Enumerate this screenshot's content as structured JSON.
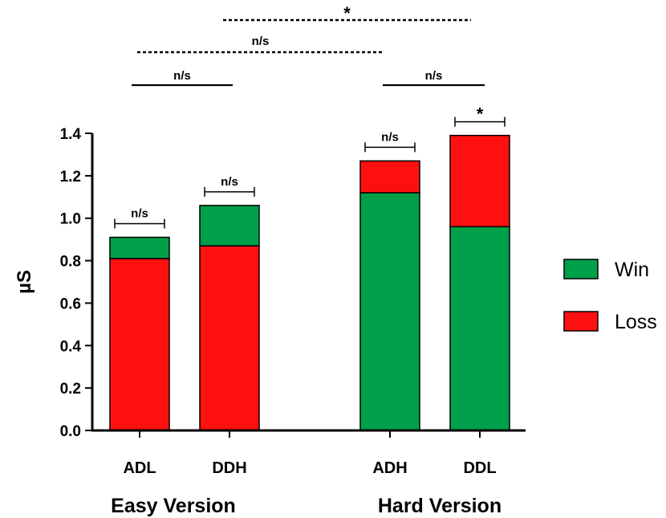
{
  "chart_data": {
    "type": "bar",
    "stacked": true,
    "ylabel": "µS",
    "ylim": [
      0,
      1.4
    ],
    "yticks": [
      "0.0",
      "0.2",
      "0.4",
      "0.6",
      "0.8",
      "1.0",
      "1.2",
      "1.4"
    ],
    "categories": [
      "ADL",
      "DDH",
      "ADH",
      "DDL"
    ],
    "groups": [
      "Easy Version",
      "Hard Version"
    ],
    "bars": [
      {
        "category": "ADL",
        "group": "Easy Version",
        "segments": [
          {
            "series": "Loss",
            "value": 0.81
          },
          {
            "series": "Win",
            "value": 0.1
          }
        ],
        "total": 0.91
      },
      {
        "category": "DDH",
        "group": "Easy Version",
        "segments": [
          {
            "series": "Loss",
            "value": 0.87
          },
          {
            "series": "Win",
            "value": 0.19
          }
        ],
        "total": 1.06
      },
      {
        "category": "ADH",
        "group": "Hard Version",
        "segments": [
          {
            "series": "Win",
            "value": 1.12
          },
          {
            "series": "Loss",
            "value": 0.15
          }
        ],
        "total": 1.27
      },
      {
        "category": "DDL",
        "group": "Hard Version",
        "segments": [
          {
            "series": "Win",
            "value": 0.96
          },
          {
            "series": "Loss",
            "value": 0.43
          }
        ],
        "total": 1.39
      }
    ],
    "series": [
      {
        "name": "Win",
        "color": "#00a04a"
      },
      {
        "name": "Loss",
        "color": "#ff1010"
      }
    ],
    "legend": {
      "position": "right",
      "items": [
        "Win",
        "Loss"
      ]
    },
    "annotations": [
      {
        "label": "n/s",
        "target": "ADL",
        "style": "bracket"
      },
      {
        "label": "n/s",
        "target": "DDH",
        "style": "bracket"
      },
      {
        "label": "n/s",
        "target": "ADH",
        "style": "bracket"
      },
      {
        "label": "*",
        "target": "DDL",
        "style": "bracket"
      },
      {
        "label": "n/s",
        "between": [
          "ADL",
          "DDH"
        ],
        "style": "solid"
      },
      {
        "label": "n/s",
        "between": [
          "ADH",
          "DDL"
        ],
        "style": "solid"
      },
      {
        "label": "n/s",
        "between": [
          "Easy Version",
          "Hard Version"
        ],
        "style": "dashed"
      },
      {
        "label": "*",
        "between": [
          "Easy Version",
          "Hard Version"
        ],
        "style": "dashed"
      }
    ]
  }
}
